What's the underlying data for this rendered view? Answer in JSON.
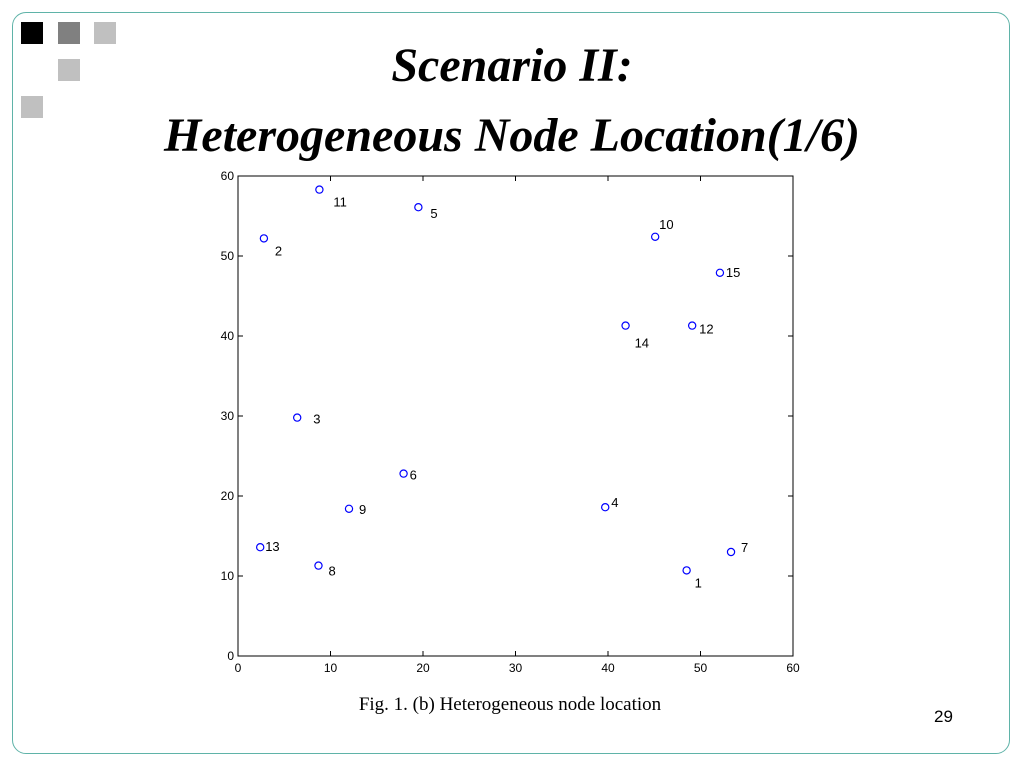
{
  "slide": {
    "title_line1": "Scenario II:",
    "title_line2": "Heterogeneous Node Location(1/6)",
    "caption": "Fig. 1. (b) Heterogeneous node location",
    "page_number": "29",
    "colors": {
      "frame": "#5fb3a8",
      "square_black": "#000000",
      "square_dark": "#808080",
      "square_light": "#c0c0c0",
      "marker": "#0000ff"
    }
  },
  "chart_data": {
    "type": "scatter",
    "title": "",
    "xlabel": "",
    "ylabel": "",
    "xlim": [
      0,
      60
    ],
    "ylim": [
      0,
      60
    ],
    "xticks": [
      0,
      10,
      20,
      30,
      40,
      50,
      60
    ],
    "yticks": [
      0,
      10,
      20,
      30,
      40,
      50,
      60
    ],
    "grid": false,
    "marker": "circle-open",
    "marker_color": "#0000ff",
    "points": [
      {
        "label": "1",
        "x": 48.5,
        "y": 10.7
      },
      {
        "label": "2",
        "x": 2.8,
        "y": 52.2
      },
      {
        "label": "3",
        "x": 6.4,
        "y": 29.8
      },
      {
        "label": "4",
        "x": 39.7,
        "y": 18.6
      },
      {
        "label": "5",
        "x": 19.5,
        "y": 56.1
      },
      {
        "label": "6",
        "x": 17.9,
        "y": 22.8
      },
      {
        "label": "7",
        "x": 53.3,
        "y": 13.0
      },
      {
        "label": "8",
        "x": 8.7,
        "y": 11.3
      },
      {
        "label": "9",
        "x": 12.0,
        "y": 18.4
      },
      {
        "label": "10",
        "x": 45.1,
        "y": 52.4
      },
      {
        "label": "11",
        "x": 8.8,
        "y": 58.3
      },
      {
        "label": "12",
        "x": 49.1,
        "y": 41.3
      },
      {
        "label": "13",
        "x": 2.4,
        "y": 13.6
      },
      {
        "label": "14",
        "x": 41.9,
        "y": 41.3
      },
      {
        "label": "15",
        "x": 52.1,
        "y": 47.9
      }
    ]
  }
}
